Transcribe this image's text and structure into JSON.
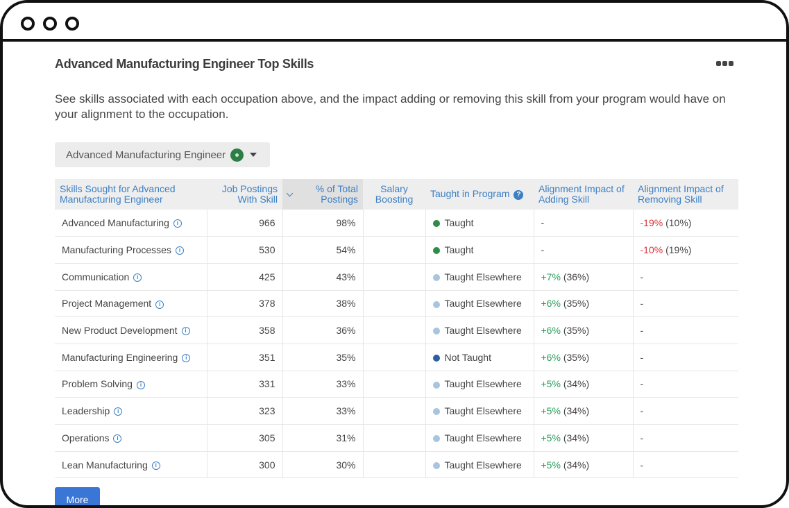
{
  "window": {
    "controls": [
      "close",
      "minimize",
      "maximize"
    ]
  },
  "header": {
    "title": "Advanced Manufacturing Engineer Top Skills",
    "menu_icon": "more-horizontal-icon"
  },
  "description": "See skills associated with each occupation above, and the impact adding or removing this skill from your program would have on your alignment to the occupation.",
  "occupation_select": {
    "selected": "Advanced Manufacturing Engineer",
    "status_color": "#2e7d45"
  },
  "table": {
    "headers": {
      "skill": "Skills Sought for Advanced Manufacturing Engineer",
      "postings": "Job Postings With Skill",
      "percent": "% of Total Postings",
      "salary": "Salary Boosting",
      "taught": "Taught in Program",
      "adding": "Alignment Impact of Adding Skill",
      "removing": "Alignment Impact of Removing Skill"
    },
    "rows": [
      {
        "skill": "Advanced Manufacturing",
        "postings": "966",
        "percent": "98%",
        "salary": "",
        "taught": "Taught",
        "taught_status": "taught",
        "add_delta": "",
        "add_pct": "-",
        "remove_delta": "-19%",
        "remove_pct": "(10%)"
      },
      {
        "skill": "Manufacturing Processes",
        "postings": "530",
        "percent": "54%",
        "salary": "",
        "taught": "Taught",
        "taught_status": "taught",
        "add_delta": "",
        "add_pct": "-",
        "remove_delta": "-10%",
        "remove_pct": "(19%)"
      },
      {
        "skill": "Communication",
        "postings": "425",
        "percent": "43%",
        "salary": "",
        "taught": "Taught Elsewhere",
        "taught_status": "elsewhere",
        "add_delta": "+7%",
        "add_pct": "(36%)",
        "remove_delta": "",
        "remove_pct": "-"
      },
      {
        "skill": "Project Management",
        "postings": "378",
        "percent": "38%",
        "salary": "",
        "taught": "Taught Elsewhere",
        "taught_status": "elsewhere",
        "add_delta": "+6%",
        "add_pct": "(35%)",
        "remove_delta": "",
        "remove_pct": "-"
      },
      {
        "skill": "New Product Development",
        "postings": "358",
        "percent": "36%",
        "salary": "",
        "taught": "Taught Elsewhere",
        "taught_status": "elsewhere",
        "add_delta": "+6%",
        "add_pct": "(35%)",
        "remove_delta": "",
        "remove_pct": "-"
      },
      {
        "skill": "Manufacturing Engineering",
        "postings": "351",
        "percent": "35%",
        "salary": "",
        "taught": "Not Taught",
        "taught_status": "not",
        "add_delta": "+6%",
        "add_pct": "(35%)",
        "remove_delta": "",
        "remove_pct": "-"
      },
      {
        "skill": "Problem Solving",
        "postings": "331",
        "percent": "33%",
        "salary": "",
        "taught": "Taught Elsewhere",
        "taught_status": "elsewhere",
        "add_delta": "+5%",
        "add_pct": "(34%)",
        "remove_delta": "",
        "remove_pct": "-"
      },
      {
        "skill": "Leadership",
        "postings": "323",
        "percent": "33%",
        "salary": "",
        "taught": "Taught Elsewhere",
        "taught_status": "elsewhere",
        "add_delta": "+5%",
        "add_pct": "(34%)",
        "remove_delta": "",
        "remove_pct": "-"
      },
      {
        "skill": "Operations",
        "postings": "305",
        "percent": "31%",
        "salary": "",
        "taught": "Taught Elsewhere",
        "taught_status": "elsewhere",
        "add_delta": "+5%",
        "add_pct": "(34%)",
        "remove_delta": "",
        "remove_pct": "-"
      },
      {
        "skill": "Lean Manufacturing",
        "postings": "300",
        "percent": "30%",
        "salary": "",
        "taught": "Taught Elsewhere",
        "taught_status": "elsewhere",
        "add_delta": "+5%",
        "add_pct": "(34%)",
        "remove_delta": "",
        "remove_pct": "-"
      }
    ]
  },
  "more_button": "More",
  "colors": {
    "accent": "#3b7fc4",
    "positive": "#2a9d5c",
    "negative": "#d9343a",
    "taught": "#2e8b4a",
    "taught_elsewhere": "#a8c4e0",
    "not_taught": "#2a5fa0",
    "button": "#3a76d6"
  }
}
